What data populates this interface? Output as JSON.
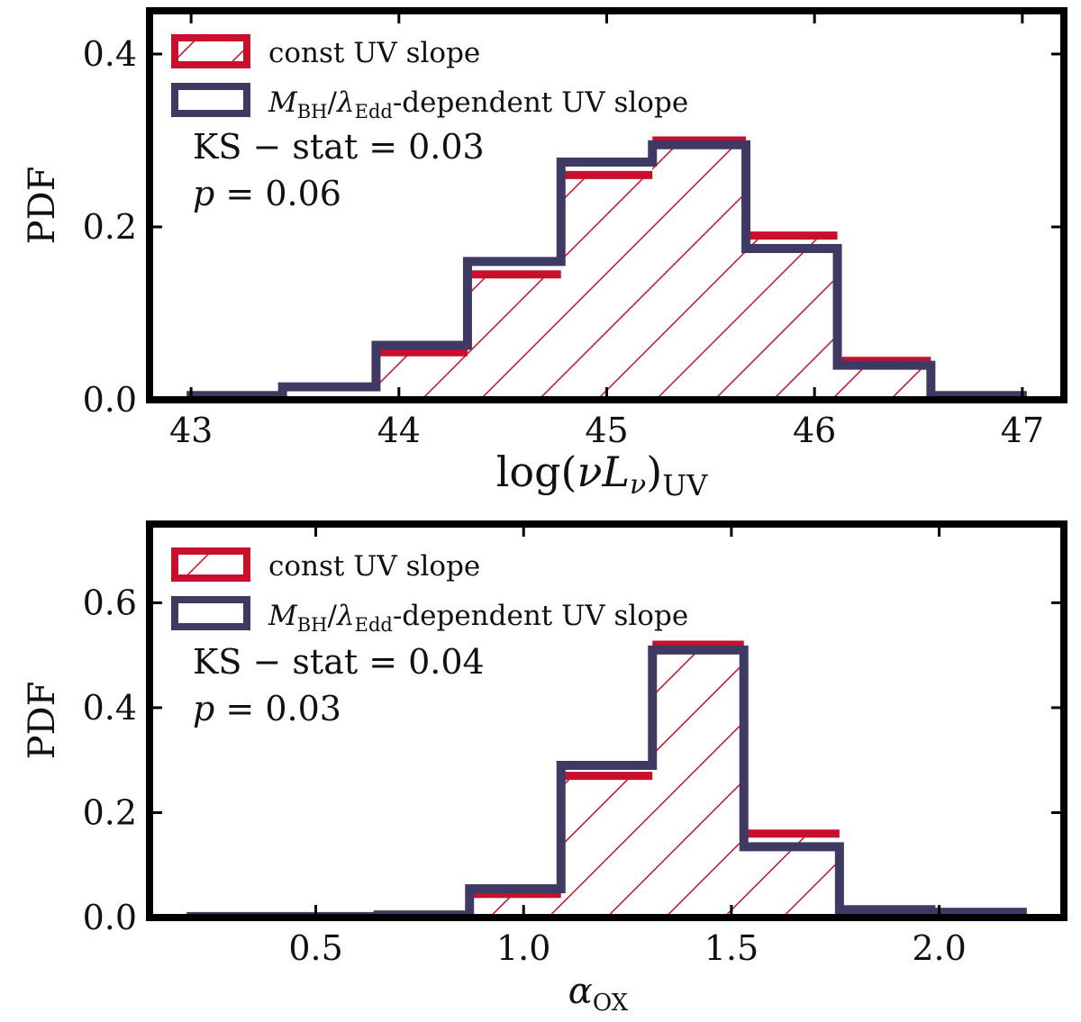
{
  "chart_data": [
    {
      "type": "bar",
      "panel": "top",
      "xlabel": "log(νL_ν)_UV",
      "ylabel": "PDF",
      "xlim": [
        42.8,
        47.2
      ],
      "ylim": [
        0.0,
        0.45
      ],
      "xticks": [
        "43",
        "44",
        "45",
        "46",
        "47"
      ],
      "yticks": [
        "0.0",
        "0.2",
        "0.4"
      ],
      "bin_edges": [
        43.0,
        43.44,
        43.89,
        44.33,
        44.78,
        45.22,
        45.67,
        46.11,
        46.56,
        47.0
      ],
      "series": [
        {
          "name": "const UV slope",
          "values": [
            0.0,
            0.0,
            0.055,
            0.145,
            0.26,
            0.3,
            0.19,
            0.045,
            0.0
          ]
        },
        {
          "name": "M_BH/λ_Edd-dependent UV slope",
          "values": [
            0.005,
            0.015,
            0.063,
            0.16,
            0.275,
            0.295,
            0.175,
            0.04,
            0.005
          ]
        }
      ],
      "annotation": {
        "ks": "KS − stat = 0.03",
        "p": "p = 0.06"
      },
      "legend_position": "top-left",
      "grid": false
    },
    {
      "type": "bar",
      "panel": "bottom",
      "xlabel": "α_OX",
      "ylabel": "PDF",
      "xlim": [
        0.1,
        2.3
      ],
      "ylim": [
        0.0,
        0.75
      ],
      "xticks": [
        "0.5",
        "1.0",
        "1.5",
        "2.0"
      ],
      "yticks": [
        "0.0",
        "0.2",
        "0.4",
        "0.6"
      ],
      "bin_edges": [
        0.2,
        0.42,
        0.65,
        0.87,
        1.09,
        1.31,
        1.53,
        1.76,
        1.98,
        2.2
      ],
      "series": [
        {
          "name": "const UV slope",
          "values": [
            0.0,
            0.0,
            0.0,
            0.045,
            0.27,
            0.52,
            0.16,
            0.0,
            0.0
          ]
        },
        {
          "name": "M_BH/λ_Edd-dependent UV slope",
          "values": [
            0.002,
            0.002,
            0.005,
            0.055,
            0.29,
            0.51,
            0.135,
            0.015,
            0.01
          ]
        }
      ],
      "annotation": {
        "ks": "KS − stat = 0.04",
        "p": "p = 0.03"
      },
      "legend_position": "top-left",
      "grid": false
    }
  ],
  "colors": {
    "const": "#c8102e",
    "dependent": "#3f3a63",
    "frame": "#000000"
  }
}
